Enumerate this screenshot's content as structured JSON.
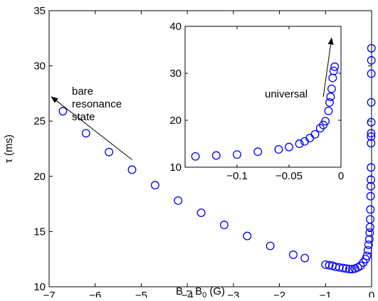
{
  "chart_data": [
    {
      "id": "main",
      "type": "scatter",
      "xlabel_base": "B − B",
      "xlabel_sub": "0",
      "xlabel_unit": " (G)",
      "ylabel": "τ (ms)",
      "xlim": [
        -7,
        0
      ],
      "ylim": [
        10,
        35
      ],
      "xticks": [
        -7,
        -6,
        -5,
        -4,
        -3,
        -2,
        -1,
        0
      ],
      "xtick_labels": [
        "−7",
        "−6",
        "−5",
        "−4",
        "−3",
        "−2",
        "−1",
        "0"
      ],
      "yticks": [
        10,
        15,
        20,
        25,
        30,
        35
      ],
      "ytick_labels": [
        "10",
        "15",
        "20",
        "25",
        "30",
        "35"
      ],
      "marker": "circle-open",
      "color": "#0000ff",
      "grid": false,
      "annotation": {
        "lines": [
          "bare",
          "resonance",
          "state"
        ],
        "arrow_from": [
          -5.2,
          21.5
        ],
        "arrow_to": [
          -6.95,
          27.2
        ]
      },
      "points": [
        [
          -6.7,
          25.9
        ],
        [
          -6.2,
          23.9
        ],
        [
          -5.7,
          22.2
        ],
        [
          -5.2,
          20.6
        ],
        [
          -4.7,
          19.2
        ],
        [
          -4.2,
          17.8
        ],
        [
          -3.7,
          16.7
        ],
        [
          -3.2,
          15.6
        ],
        [
          -2.7,
          14.6
        ],
        [
          -2.2,
          13.7
        ],
        [
          -1.7,
          12.9
        ],
        [
          -1.45,
          12.6
        ],
        [
          -1.0,
          12.0
        ],
        [
          -0.92,
          11.95
        ],
        [
          -0.85,
          11.9
        ],
        [
          -0.78,
          11.8
        ],
        [
          -0.7,
          11.75
        ],
        [
          -0.62,
          11.7
        ],
        [
          -0.55,
          11.65
        ],
        [
          -0.48,
          11.6
        ],
        [
          -0.42,
          11.6
        ],
        [
          -0.36,
          11.65
        ],
        [
          -0.3,
          11.75
        ],
        [
          -0.24,
          11.9
        ],
        [
          -0.18,
          12.2
        ],
        [
          -0.13,
          12.5
        ],
        [
          -0.1,
          12.8
        ],
        [
          -0.08,
          13.3
        ],
        [
          -0.065,
          13.8
        ],
        [
          -0.05,
          14.3
        ],
        [
          -0.04,
          14.9
        ],
        [
          -0.035,
          15.4
        ],
        [
          -0.03,
          16.1
        ],
        [
          -0.025,
          17.0
        ],
        [
          -0.02,
          18.2
        ],
        [
          -0.017,
          19.1
        ],
        [
          -0.015,
          19.7
        ],
        [
          -0.012,
          20.8
        ],
        [
          -0.01,
          23.6
        ],
        [
          -0.008,
          24.9
        ],
        [
          -0.007,
          26.7
        ],
        [
          -0.006,
          29.3
        ],
        [
          -0.005,
          30.5
        ],
        [
          -0.004,
          31.6
        ],
        [
          -0.01,
          23.9
        ],
        [
          -0.012,
          23.0
        ]
      ]
    },
    {
      "id": "inset",
      "type": "scatter",
      "xlim": [
        -0.15,
        0
      ],
      "ylim": [
        10,
        40
      ],
      "xticks": [
        -0.1,
        -0.05,
        0
      ],
      "xtick_labels": [
        "−0.1",
        "−0.05",
        "0"
      ],
      "yticks": [
        10,
        20,
        30,
        40
      ],
      "ytick_labels": [
        "10",
        "20",
        "30",
        "40"
      ],
      "marker": "circle-open",
      "color": "#0000ff",
      "grid": false,
      "annotation": {
        "lines": [
          "universal"
        ],
        "arrow_from": [
          -0.017,
          25.0
        ],
        "arrow_to": [
          -0.009,
          37.5
        ]
      },
      "points": [
        [
          -0.14,
          12.3
        ],
        [
          -0.12,
          12.5
        ],
        [
          -0.1,
          12.7
        ],
        [
          -0.08,
          13.3
        ],
        [
          -0.06,
          13.8
        ],
        [
          -0.05,
          14.3
        ],
        [
          -0.04,
          15.0
        ],
        [
          -0.035,
          15.5
        ],
        [
          -0.03,
          16.2
        ],
        [
          -0.025,
          17.0
        ],
        [
          -0.02,
          18.3
        ],
        [
          -0.017,
          19.0
        ],
        [
          -0.015,
          19.8
        ],
        [
          -0.012,
          22.0
        ],
        [
          -0.011,
          23.8
        ],
        [
          -0.01,
          25.0
        ],
        [
          -0.009,
          26.7
        ],
        [
          -0.008,
          29.0
        ],
        [
          -0.007,
          30.5
        ],
        [
          -0.006,
          31.4
        ]
      ]
    }
  ]
}
